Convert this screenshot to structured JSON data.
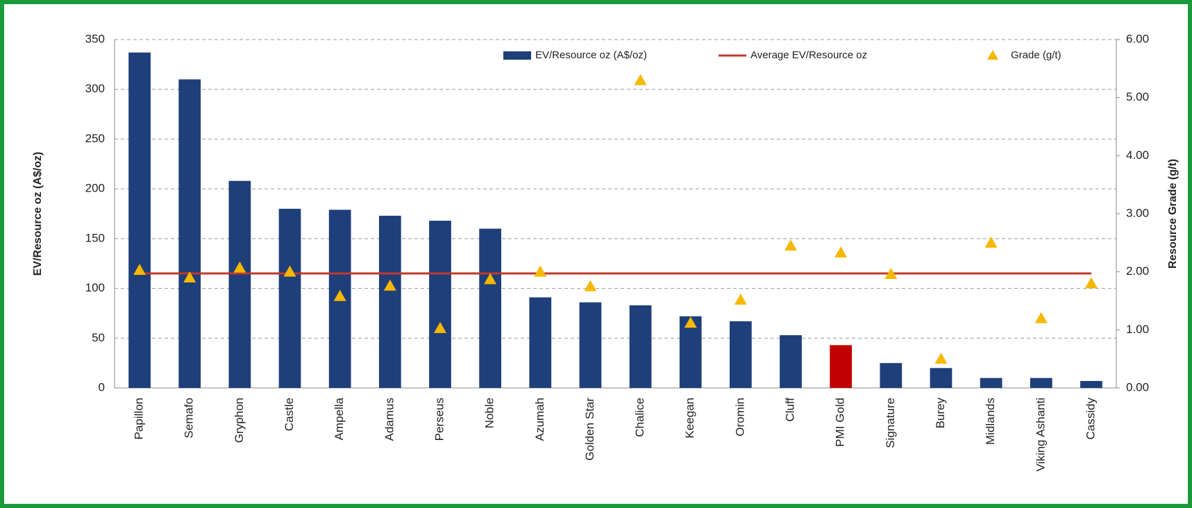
{
  "chart_data": {
    "type": "bar",
    "categories": [
      "Papillon",
      "Semafo",
      "Gryphon",
      "Castle",
      "Ampella",
      "Adamus",
      "Perseus",
      "Noble",
      "Azumah",
      "Golden Star",
      "Chalice",
      "Keegan",
      "Oromin",
      "Cluff",
      "PMI Gold",
      "Signature",
      "Burey",
      "Midlands",
      "Viking Ashanti",
      "Cassidy"
    ],
    "series": [
      {
        "name": "EV/Resource oz (A$/oz)",
        "type": "bar",
        "color": "#1f3f7a",
        "colors": [
          "#1f3f7a",
          "#1f3f7a",
          "#1f3f7a",
          "#1f3f7a",
          "#1f3f7a",
          "#1f3f7a",
          "#1f3f7a",
          "#1f3f7a",
          "#1f3f7a",
          "#1f3f7a",
          "#1f3f7a",
          "#1f3f7a",
          "#1f3f7a",
          "#1f3f7a",
          "#c00000",
          "#1f3f7a",
          "#1f3f7a",
          "#1f3f7a",
          "#1f3f7a",
          "#1f3f7a"
        ],
        "values": [
          337,
          310,
          208,
          180,
          179,
          173,
          168,
          160,
          91,
          86,
          83,
          72,
          67,
          53,
          43,
          25,
          20,
          10,
          10,
          7
        ]
      },
      {
        "name": "Average EV/Resource oz",
        "type": "line",
        "color": "#c0392b",
        "values": [
          115,
          115,
          115,
          115,
          115,
          115,
          115,
          115,
          115,
          115,
          115,
          115,
          115,
          115,
          115,
          115,
          115,
          115,
          115,
          115
        ]
      },
      {
        "name": "Grade (g/t)",
        "type": "scatter",
        "axis": "y2",
        "color": "#f5b800",
        "values": [
          2.03,
          1.9,
          2.07,
          2.0,
          1.58,
          1.76,
          1.03,
          1.87,
          2.0,
          1.75,
          5.3,
          1.12,
          1.52,
          2.45,
          2.33,
          1.96,
          0.5,
          2.5,
          1.2,
          1.8
        ]
      }
    ],
    "ylabel": "EV/Resource oz (A$/oz)",
    "y2label": "Resource Grade (g/t)",
    "ylim": [
      0,
      350
    ],
    "yticks": [
      0,
      50,
      100,
      150,
      200,
      250,
      300,
      350
    ],
    "y2lim": [
      0,
      6
    ],
    "y2ticks": [
      {
        "value": 0,
        "label": "0.00"
      },
      {
        "value": 1,
        "label": "1.00"
      },
      {
        "value": 2,
        "label": "2.00"
      },
      {
        "value": 3,
        "label": "3.00"
      },
      {
        "value": 4,
        "label": "4.00"
      },
      {
        "value": 5,
        "label": "5.00"
      },
      {
        "value": 6,
        "label": "6.00"
      }
    ],
    "grid": true
  }
}
